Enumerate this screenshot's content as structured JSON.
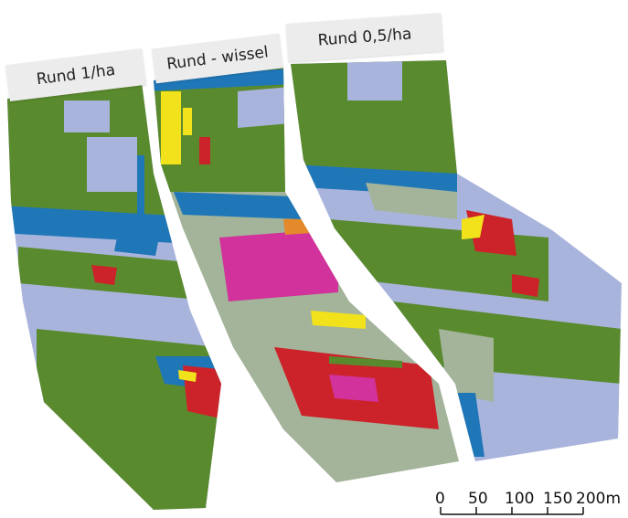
{
  "panels": [
    {
      "label": "Rund 1/ha"
    },
    {
      "label": "Rund - wissel"
    },
    {
      "label": "Rund 0,5/ha"
    }
  ],
  "scale_bar": {
    "ticks": [
      "0",
      "50",
      "100",
      "150",
      "200m"
    ]
  },
  "colors": {
    "water": "#1f77b8",
    "grass_green": "#5a8a2e",
    "lavender": "#a9b4dc",
    "sage": "#a3b49a",
    "red": "#cc2229",
    "magenta": "#d1329b",
    "yellow": "#f2e21c",
    "orange": "#e58a2a"
  }
}
